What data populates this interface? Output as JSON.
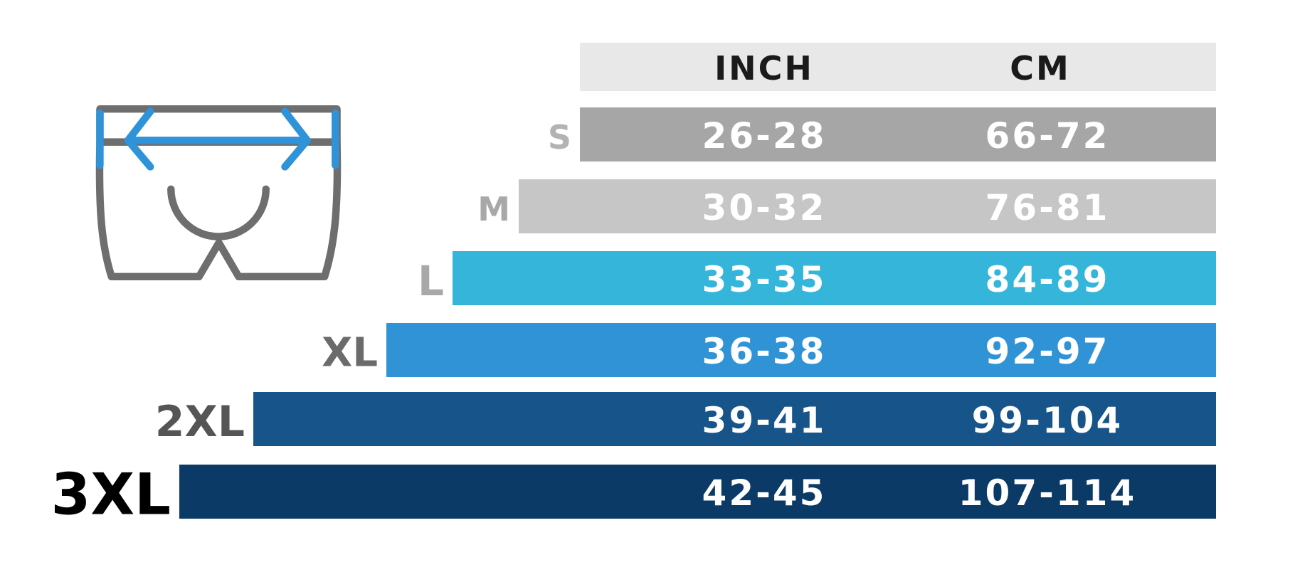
{
  "table": {
    "header": [
      "INCH",
      "CM"
    ],
    "rows": [
      [
        "S",
        "26-28",
        "66-72"
      ],
      [
        "M",
        "30-32",
        "76-81"
      ],
      [
        "L",
        "33-35",
        "84-89"
      ],
      [
        "XL",
        "36-38",
        "92-97"
      ],
      [
        "2XL",
        "39-41",
        "99-104"
      ],
      [
        "3XL",
        "42-45",
        "107-114"
      ]
    ]
  }
}
